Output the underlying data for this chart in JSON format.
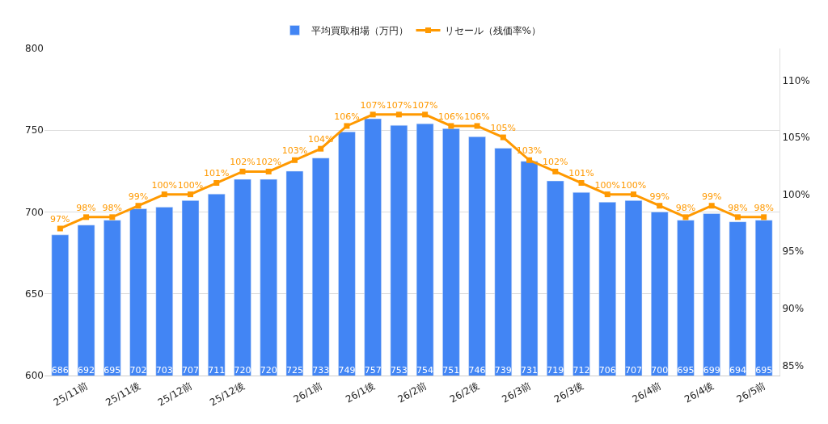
{
  "chart_data": {
    "type": "bar",
    "categories": [
      null,
      "25/11前",
      null,
      "25/11後",
      null,
      "25/12前",
      null,
      "25/12後",
      null,
      null,
      "26/1前",
      null,
      "26/1後",
      null,
      "26/2前",
      null,
      "26/2後",
      null,
      "26/3前",
      null,
      "26/3後",
      null,
      null,
      "26/4前",
      null,
      "26/4後",
      null,
      "26/5前"
    ],
    "series": [
      {
        "name": "平均買取相場（万円）",
        "color": "#4285f4",
        "values": [
          686,
          692,
          695,
          702,
          703,
          707,
          711,
          720,
          720,
          725,
          733,
          749,
          757,
          753,
          754,
          751,
          746,
          739,
          731,
          719,
          712,
          706,
          707,
          700,
          695,
          699,
          694,
          695
        ]
      },
      {
        "name": "リセール（残価率%）",
        "color": "#ff9900",
        "type": "line",
        "axis": "y2",
        "marker": "square",
        "line_style": "solid",
        "values": [
          97,
          98,
          98,
          99,
          100,
          100,
          101,
          102,
          102,
          103,
          104,
          106,
          107,
          107,
          107,
          106,
          106,
          105,
          103,
          102,
          101,
          100,
          100,
          99,
          98,
          99,
          98,
          98
        ],
        "value_labels": [
          "97%",
          "98%",
          "98%",
          "99%",
          "100%",
          "100%",
          "101%",
          "102%",
          "102%",
          "103%",
          "104%",
          "106%",
          "107%",
          "107%",
          "107%",
          "106%",
          "106%",
          "105%",
          "103%",
          "102%",
          "101%",
          "100%",
          "100%",
          "99%",
          "98%",
          "99%",
          "98%",
          "98%"
        ]
      }
    ],
    "ylim": [
      600,
      800
    ],
    "yticks": [
      600,
      650,
      700,
      750,
      800
    ],
    "y2lim": [
      84.1,
      112.8
    ],
    "y2ticks": [
      {
        "value": 85,
        "label": "85%"
      },
      {
        "value": 90,
        "label": "90%"
      },
      {
        "value": 95,
        "label": "95%"
      },
      {
        "value": 100,
        "label": "100%"
      },
      {
        "value": 105,
        "label": "105%"
      },
      {
        "value": 110,
        "label": "110%"
      }
    ],
    "grid": "y",
    "legend": "top",
    "data_labels": true
  }
}
